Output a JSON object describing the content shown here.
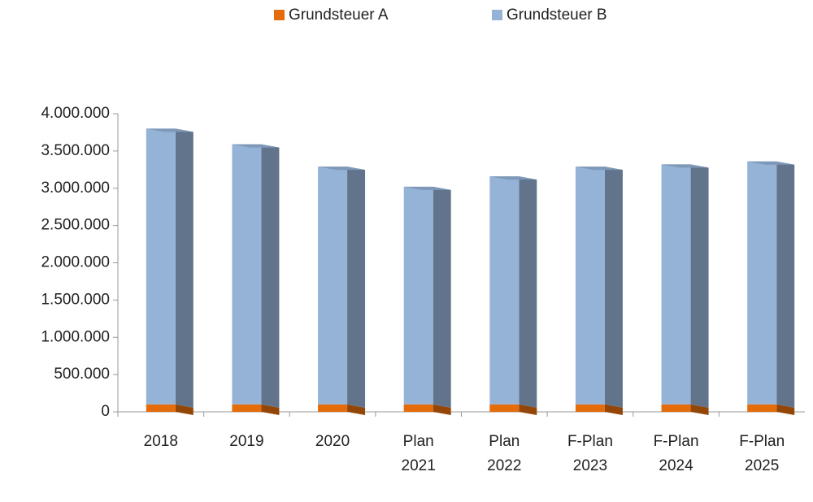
{
  "chart_data": {
    "type": "bar",
    "stacked": true,
    "categories": [
      "2018",
      "2019",
      "2020",
      "Plan 2021",
      "Plan 2022",
      "F-Plan 2023",
      "F-Plan 2024",
      "F-Plan 2025"
    ],
    "series": [
      {
        "name": "Grundsteuer A",
        "color": "#e46c0a",
        "values": [
          100000,
          100000,
          100000,
          100000,
          100000,
          100000,
          100000,
          100000
        ]
      },
      {
        "name": "Grundsteuer B",
        "color": "#95b3d7",
        "values": [
          3700000,
          3490000,
          3190000,
          2920000,
          3060000,
          3190000,
          3220000,
          3260000
        ]
      }
    ],
    "ylim": [
      0,
      4000000
    ],
    "yticks": [
      0,
      {
        "value": 500000,
        "label": "500.000"
      },
      {
        "value": 1000000,
        "label": "1.000.000"
      },
      {
        "value": 1500000,
        "label": "1.500.000"
      },
      {
        "value": 2000000,
        "label": "2.000.000"
      },
      {
        "value": 2500000,
        "label": "2.500.000"
      },
      {
        "value": 3000000,
        "label": "3.000.000"
      },
      {
        "value": 3500000,
        "label": "3.500.000"
      },
      {
        "value": 4000000,
        "label": "4.000.000"
      }
    ],
    "legend": "top"
  }
}
